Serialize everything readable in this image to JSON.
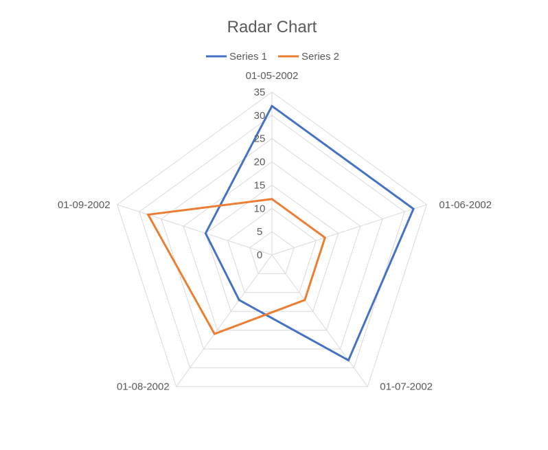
{
  "chart_data": {
    "type": "radar",
    "title": "Radar Chart",
    "categories": [
      "01-05-2002",
      "01-06-2002",
      "01-07-2002",
      "01-08-2002",
      "01-09-2002"
    ],
    "series": [
      {
        "name": "Series 1",
        "values": [
          32,
          32,
          28,
          12,
          15
        ],
        "color": "#4472C4"
      },
      {
        "name": "Series 2",
        "values": [
          12,
          12,
          12,
          21,
          28
        ],
        "color": "#ED7D31"
      }
    ],
    "radial_ticks": [
      "0",
      "5",
      "10",
      "15",
      "20",
      "25",
      "30",
      "35"
    ],
    "rlim": [
      0,
      35
    ],
    "grid": true,
    "legend": "top"
  }
}
